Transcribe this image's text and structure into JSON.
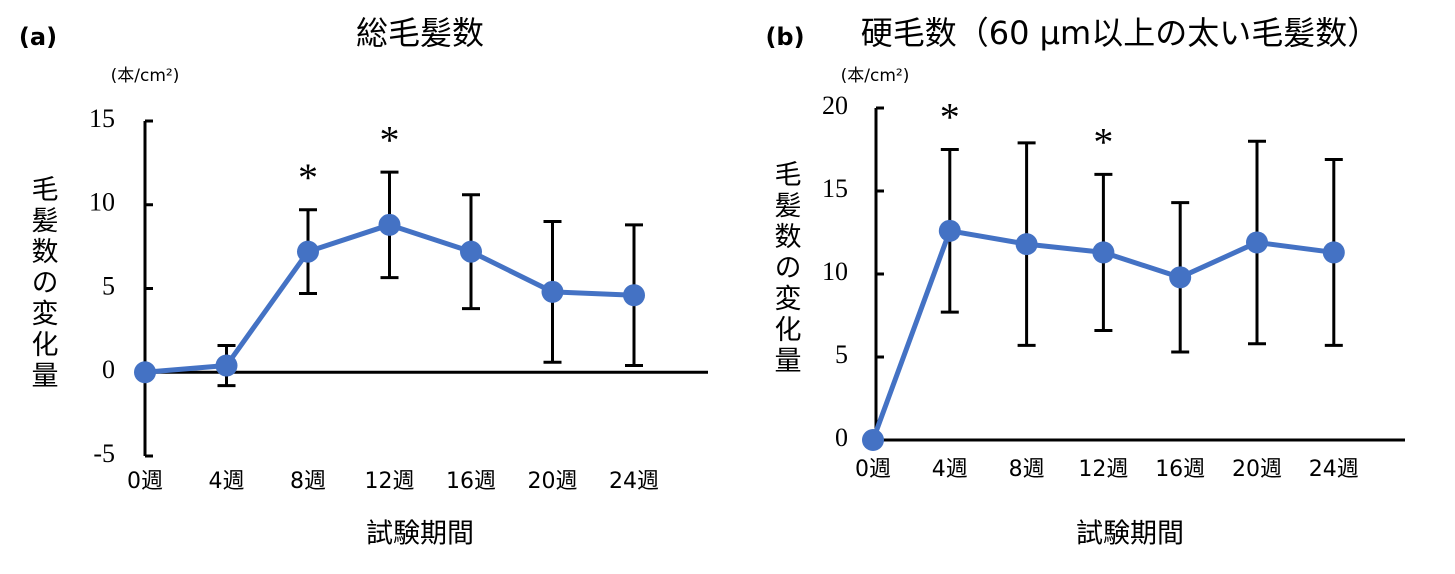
{
  "chart_data": [
    {
      "type": "line",
      "label": "(a)",
      "title": "総毛髪数",
      "unit": "(本/cm²)",
      "y_label": "毛髪数の変化量",
      "x_label": "試験期間",
      "categories": [
        "0週",
        "4週",
        "8週",
        "12週",
        "16週",
        "20週",
        "24週"
      ],
      "series": [
        {
          "name": "総毛髪数",
          "color": "#4472c4",
          "values": [
            0,
            0.4,
            7.2,
            8.8,
            7.2,
            4.8,
            4.6
          ],
          "errors": [
            null,
            1.2,
            2.5,
            3.15,
            3.4,
            4.2,
            4.2
          ],
          "significance": [
            null,
            null,
            "*",
            "*",
            null,
            null,
            null
          ]
        }
      ],
      "ylim": [
        -5,
        15
      ],
      "yticks": [
        -5,
        0,
        5,
        10,
        15
      ]
    },
    {
      "type": "line",
      "label": "(b)",
      "title": "硬毛数（60 µm以上の太い毛髪数）",
      "unit": "(本/cm²)",
      "y_label": "毛髪数の変化量",
      "x_label": "試験期間",
      "categories": [
        "0週",
        "4週",
        "8週",
        "12週",
        "16週",
        "20週",
        "24週"
      ],
      "series": [
        {
          "name": "硬毛数",
          "color": "#4472c4",
          "values": [
            0,
            12.6,
            11.8,
            11.3,
            9.8,
            11.9,
            11.3
          ],
          "errors": [
            null,
            4.9,
            6.1,
            4.7,
            4.5,
            6.1,
            5.6
          ],
          "significance": [
            null,
            "*",
            null,
            "*",
            null,
            null,
            null
          ]
        }
      ],
      "ylim": [
        0,
        20
      ],
      "yticks": [
        0,
        5,
        10,
        15,
        20
      ]
    }
  ]
}
